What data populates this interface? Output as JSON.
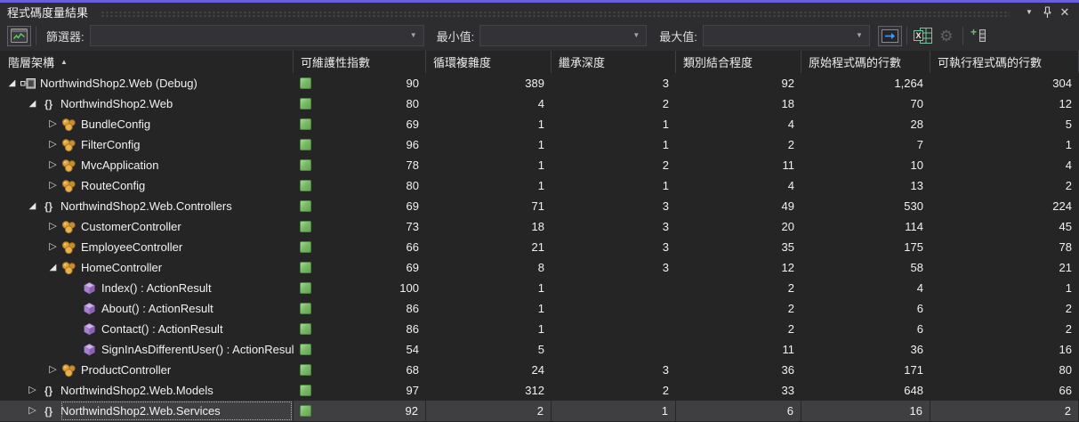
{
  "window": {
    "title": "程式碼度量結果"
  },
  "titlebar": {
    "window_menu_icon": "chevron-down",
    "pin_icon": "pin",
    "close_icon": "✕"
  },
  "toolbar": {
    "create_metrics_icon": "metrics-chart",
    "filter_label": "篩選器:",
    "filter_value": "",
    "min_label": "最小值:",
    "min_value": "",
    "max_label": "最大值:",
    "max_value": "",
    "apply_icon": "arrow-right-box",
    "export_excel_icon": "excel",
    "settings_icon": "gear",
    "add_column_icon": "add-column"
  },
  "columns": [
    {
      "label": "階層架構",
      "sort": "asc"
    },
    {
      "label": "可維護性指數"
    },
    {
      "label": "循環複雜度"
    },
    {
      "label": "繼承深度"
    },
    {
      "label": "類別結合程度"
    },
    {
      "label": "原始程式碼的行數"
    },
    {
      "label": "可執行程式碼的行數"
    }
  ],
  "colors": {
    "accent": "#6a5fd8",
    "metric_good": "#79bb67",
    "selected_row": "#3f3f41"
  },
  "rows": [
    {
      "name": "NorthwindShop2.Web (Debug)",
      "icon": "project",
      "expander": "expanded",
      "level": 1,
      "selected": false,
      "values": [
        "90",
        "389",
        "3",
        "92",
        "1,264",
        "304"
      ]
    },
    {
      "name": "NorthwindShop2.Web",
      "icon": "namespace",
      "expander": "expanded",
      "level": 2,
      "selected": false,
      "values": [
        "80",
        "4",
        "2",
        "18",
        "70",
        "12"
      ]
    },
    {
      "name": "BundleConfig",
      "icon": "class",
      "expander": "collapsed",
      "level": 3,
      "selected": false,
      "values": [
        "69",
        "1",
        "1",
        "4",
        "28",
        "5"
      ]
    },
    {
      "name": "FilterConfig",
      "icon": "class",
      "expander": "collapsed",
      "level": 3,
      "selected": false,
      "values": [
        "96",
        "1",
        "1",
        "2",
        "7",
        "1"
      ]
    },
    {
      "name": "MvcApplication",
      "icon": "class",
      "expander": "collapsed",
      "level": 3,
      "selected": false,
      "values": [
        "78",
        "1",
        "2",
        "11",
        "10",
        "4"
      ]
    },
    {
      "name": "RouteConfig",
      "icon": "class",
      "expander": "collapsed",
      "level": 3,
      "selected": false,
      "values": [
        "80",
        "1",
        "1",
        "4",
        "13",
        "2"
      ]
    },
    {
      "name": "NorthwindShop2.Web.Controllers",
      "icon": "namespace",
      "expander": "expanded",
      "level": 2,
      "selected": false,
      "values": [
        "69",
        "71",
        "3",
        "49",
        "530",
        "224"
      ]
    },
    {
      "name": "CustomerController",
      "icon": "class",
      "expander": "collapsed",
      "level": 3,
      "selected": false,
      "values": [
        "73",
        "18",
        "3",
        "20",
        "114",
        "45"
      ]
    },
    {
      "name": "EmployeeController",
      "icon": "class",
      "expander": "collapsed",
      "level": 3,
      "selected": false,
      "values": [
        "66",
        "21",
        "3",
        "35",
        "175",
        "78"
      ]
    },
    {
      "name": "HomeController",
      "icon": "class",
      "expander": "expanded",
      "level": 3,
      "selected": false,
      "values": [
        "69",
        "8",
        "3",
        "12",
        "58",
        "21"
      ]
    },
    {
      "name": "Index() : ActionResult",
      "icon": "method",
      "expander": "none",
      "level": 4,
      "selected": false,
      "values": [
        "100",
        "1",
        "",
        "2",
        "4",
        "1"
      ]
    },
    {
      "name": "About() : ActionResult",
      "icon": "method",
      "expander": "none",
      "level": 4,
      "selected": false,
      "values": [
        "86",
        "1",
        "",
        "2",
        "6",
        "2"
      ]
    },
    {
      "name": "Contact() : ActionResult",
      "icon": "method",
      "expander": "none",
      "level": 4,
      "selected": false,
      "values": [
        "86",
        "1",
        "",
        "2",
        "6",
        "2"
      ]
    },
    {
      "name": "SignInAsDifferentUser() : ActionResult",
      "icon": "method",
      "expander": "none",
      "level": 4,
      "selected": false,
      "values": [
        "54",
        "5",
        "",
        "11",
        "36",
        "16"
      ]
    },
    {
      "name": "ProductController",
      "icon": "class",
      "expander": "collapsed",
      "level": 3,
      "selected": false,
      "values": [
        "68",
        "24",
        "3",
        "36",
        "171",
        "80"
      ]
    },
    {
      "name": "NorthwindShop2.Web.Models",
      "icon": "namespace",
      "expander": "collapsed",
      "level": 2,
      "selected": false,
      "values": [
        "97",
        "312",
        "2",
        "33",
        "648",
        "66"
      ]
    },
    {
      "name": "NorthwindShop2.Web.Services",
      "icon": "namespace",
      "expander": "collapsed",
      "level": 2,
      "selected": true,
      "values": [
        "92",
        "2",
        "1",
        "6",
        "16",
        "2"
      ]
    }
  ]
}
